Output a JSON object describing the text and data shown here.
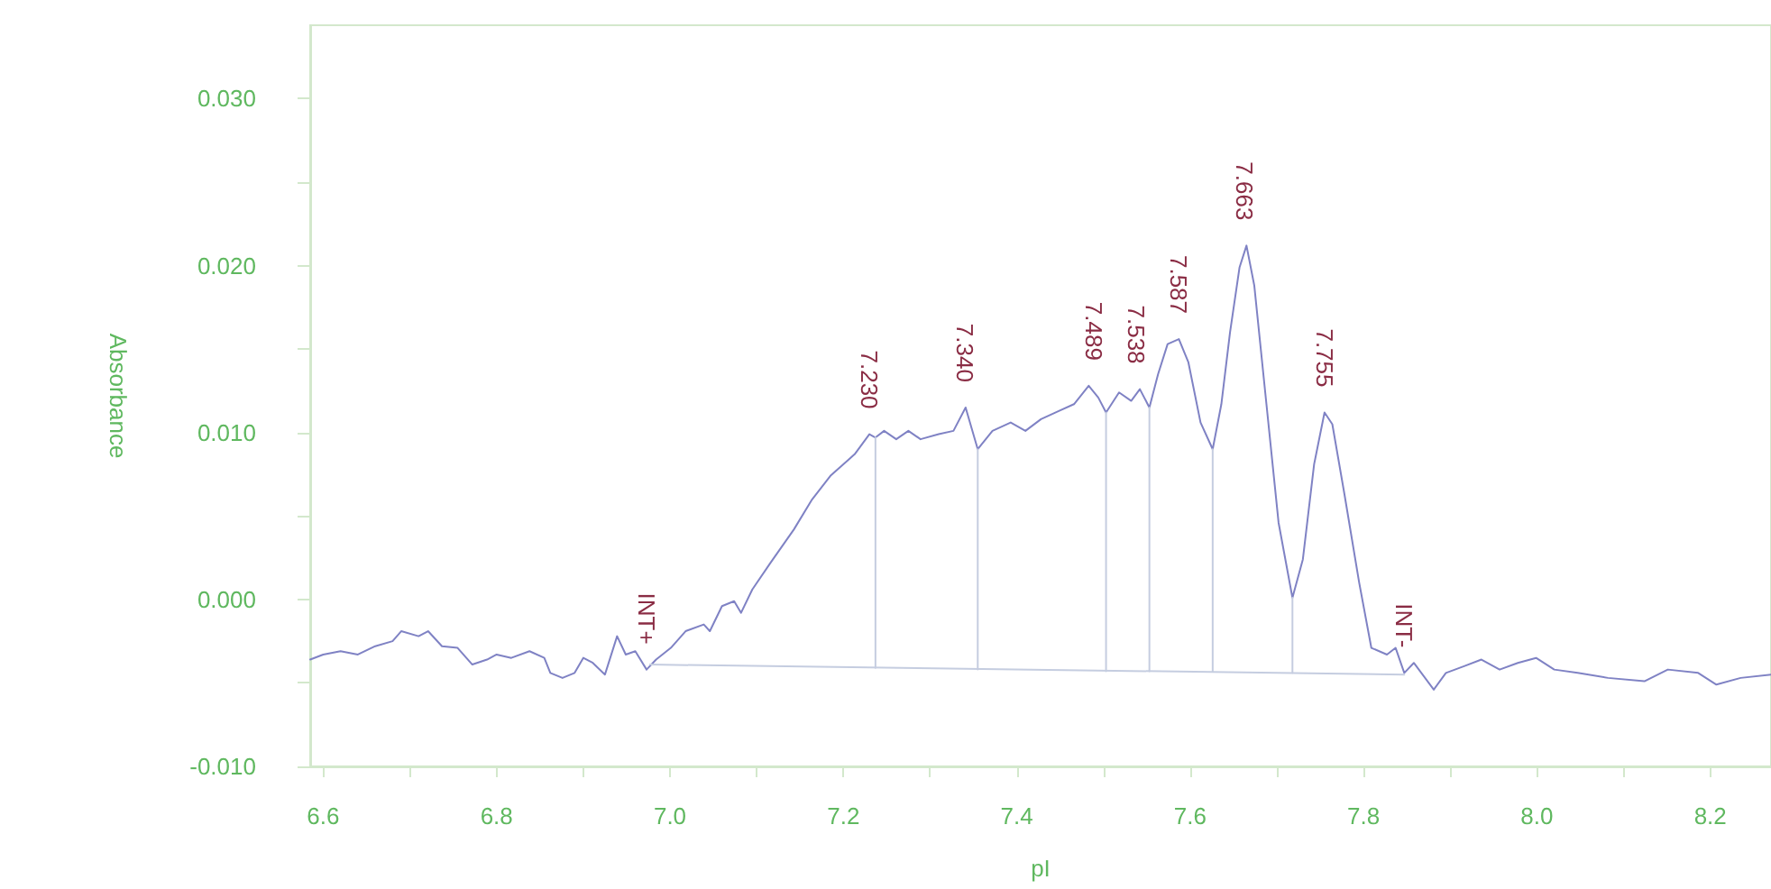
{
  "chart_data": {
    "type": "line",
    "xlabel": "pI",
    "ylabel": "Absorbance",
    "marker": "none",
    "grid": false,
    "xlim": [
      6.585,
      8.27
    ],
    "ylim": [
      -0.01,
      0.0344
    ],
    "xticks": [
      6.6,
      {
        "value": 6.7,
        "label": null
      },
      6.8,
      {
        "value": 6.9,
        "label": null
      },
      {
        "value": 7,
        "label": "7.0"
      },
      {
        "value": 7.1,
        "label": null
      },
      7.2,
      {
        "value": 7.3,
        "label": null
      },
      7.4,
      {
        "value": 7.5,
        "label": null
      },
      7.6,
      {
        "value": 7.7,
        "label": null
      },
      7.8,
      {
        "value": 7.9,
        "label": null
      },
      {
        "value": 8,
        "label": "8.0"
      },
      {
        "value": 8.1,
        "label": null
      },
      8.2
    ],
    "yticks": [
      {
        "value": -0.01,
        "label": "-0.010"
      },
      {
        "value": -0.005,
        "label": null
      },
      {
        "value": 0,
        "label": "0.000"
      },
      {
        "value": 0.005,
        "label": null
      },
      {
        "value": 0.01,
        "label": "0.010"
      },
      {
        "value": 0.015,
        "label": null
      },
      {
        "value": 0.02,
        "label": "0.020"
      },
      {
        "value": 0.025,
        "label": null
      },
      {
        "value": 0.03,
        "label": "0.030"
      }
    ],
    "series": [
      {
        "color": "#7f82c4",
        "x": [
          6.585,
          6.6,
          6.62,
          6.64,
          6.66,
          6.68,
          6.69,
          6.71,
          6.721,
          6.737,
          6.755,
          6.772,
          6.789,
          6.8,
          6.817,
          6.838,
          6.855,
          6.862,
          6.876,
          6.89,
          6.9,
          6.911,
          6.925,
          6.939,
          6.949,
          6.96,
          6.973,
          6.984,
          7.001,
          7.018,
          7.039,
          7.046,
          7.06,
          7.074,
          7.082,
          7.095,
          7.116,
          7.143,
          7.164,
          7.185,
          7.213,
          7.23,
          7.237,
          7.247,
          7.261,
          7.275,
          7.289,
          7.31,
          7.327,
          7.341,
          7.355,
          7.372,
          7.393,
          7.41,
          7.428,
          7.449,
          7.466,
          7.483,
          7.494,
          7.503,
          7.518,
          7.532,
          7.542,
          7.553,
          7.563,
          7.574,
          7.587,
          7.598,
          7.612,
          7.626,
          7.636,
          7.646,
          7.657,
          7.665,
          7.674,
          7.688,
          7.702,
          7.718,
          7.73,
          7.743,
          7.755,
          7.764,
          7.778,
          7.795,
          7.809,
          7.827,
          7.837,
          7.847,
          7.858,
          7.881,
          7.895,
          7.916,
          7.936,
          7.957,
          7.978,
          7.999,
          8.02,
          8.047,
          8.082,
          8.124,
          8.151,
          8.186,
          8.207,
          8.235,
          8.27
        ],
        "values": [
          -0.0036,
          -0.0033,
          -0.0031,
          -0.0033,
          -0.0028,
          -0.0025,
          -0.0019,
          -0.0022,
          -0.0019,
          -0.0028,
          -0.0029,
          -0.0039,
          -0.0036,
          -0.0033,
          -0.0035,
          -0.0031,
          -0.0035,
          -0.0044,
          -0.0047,
          -0.0044,
          -0.0035,
          -0.0038,
          -0.0045,
          -0.0022,
          -0.0033,
          -0.0031,
          -0.0042,
          -0.0036,
          -0.0029,
          -0.0019,
          -0.0015,
          -0.0019,
          -0.0004,
          -0.0001,
          -0.0008,
          0.0006,
          0.0022,
          0.0042,
          0.006,
          0.0074,
          0.0087,
          0.0099,
          0.0097,
          0.0101,
          0.0096,
          0.0101,
          0.0096,
          0.0099,
          0.0101,
          0.0115,
          0.009,
          0.0101,
          0.0106,
          0.0101,
          0.0108,
          0.0113,
          0.0117,
          0.0128,
          0.0121,
          0.0112,
          0.0124,
          0.0119,
          0.0126,
          0.0115,
          0.0135,
          0.0153,
          0.0156,
          0.0142,
          0.0106,
          0.009,
          0.0117,
          0.016,
          0.0199,
          0.0212,
          0.0188,
          0.0117,
          0.0046,
          0.0001,
          0.0024,
          0.0081,
          0.0112,
          0.0105,
          0.0063,
          0.001,
          -0.0029,
          -0.0033,
          -0.0029,
          -0.0044,
          -0.0038,
          -0.0054,
          -0.0044,
          -0.004,
          -0.0036,
          -0.0042,
          -0.0038,
          -0.0035,
          -0.0042,
          -0.0044,
          -0.0047,
          -0.0049,
          -0.0042,
          -0.0044,
          -0.0051,
          -0.0047,
          -0.0045
        ]
      },
      {
        "color": "#c5cde0",
        "x": [
          6.977,
          7.847
        ],
        "values": [
          -0.0039,
          -0.0045
        ]
      },
      {
        "color": "#c5cde0",
        "x": [
          7.237,
          7.237
        ],
        "values": [
          0.0097,
          -0.0041
        ]
      },
      {
        "color": "#c5cde0",
        "x": [
          7.355,
          7.355
        ],
        "values": [
          0.009,
          -0.0042
        ]
      },
      {
        "color": "#c5cde0",
        "x": [
          7.503,
          7.503
        ],
        "values": [
          0.0112,
          -0.0043
        ]
      },
      {
        "color": "#c5cde0",
        "x": [
          7.553,
          7.553
        ],
        "values": [
          0.0115,
          -0.0043
        ]
      },
      {
        "color": "#c5cde0",
        "x": [
          7.626,
          7.626
        ],
        "values": [
          0.009,
          -0.0043
        ]
      },
      {
        "color": "#c5cde0",
        "x": [
          7.718,
          7.718
        ],
        "values": [
          0.0001,
          -0.0044
        ]
      }
    ],
    "annotations": [
      {
        "text": "INT+",
        "x": 6.973,
        "y": -0.0042
      },
      {
        "text": "7.230",
        "x": 7.23,
        "y": 0.0099
      },
      {
        "text": "7.340",
        "x": 7.34,
        "y": 0.0115
      },
      {
        "text": "7.489",
        "x": 7.489,
        "y": 0.0128
      },
      {
        "text": "7.538",
        "x": 7.538,
        "y": 0.0126
      },
      {
        "text": "7.587",
        "x": 7.587,
        "y": 0.0156
      },
      {
        "text": "7.663",
        "x": 7.663,
        "y": 0.0212
      },
      {
        "text": "7.755",
        "x": 7.755,
        "y": 0.0112
      },
      {
        "text": "INT-",
        "x": 7.847,
        "y": -0.0044
      }
    ]
  }
}
